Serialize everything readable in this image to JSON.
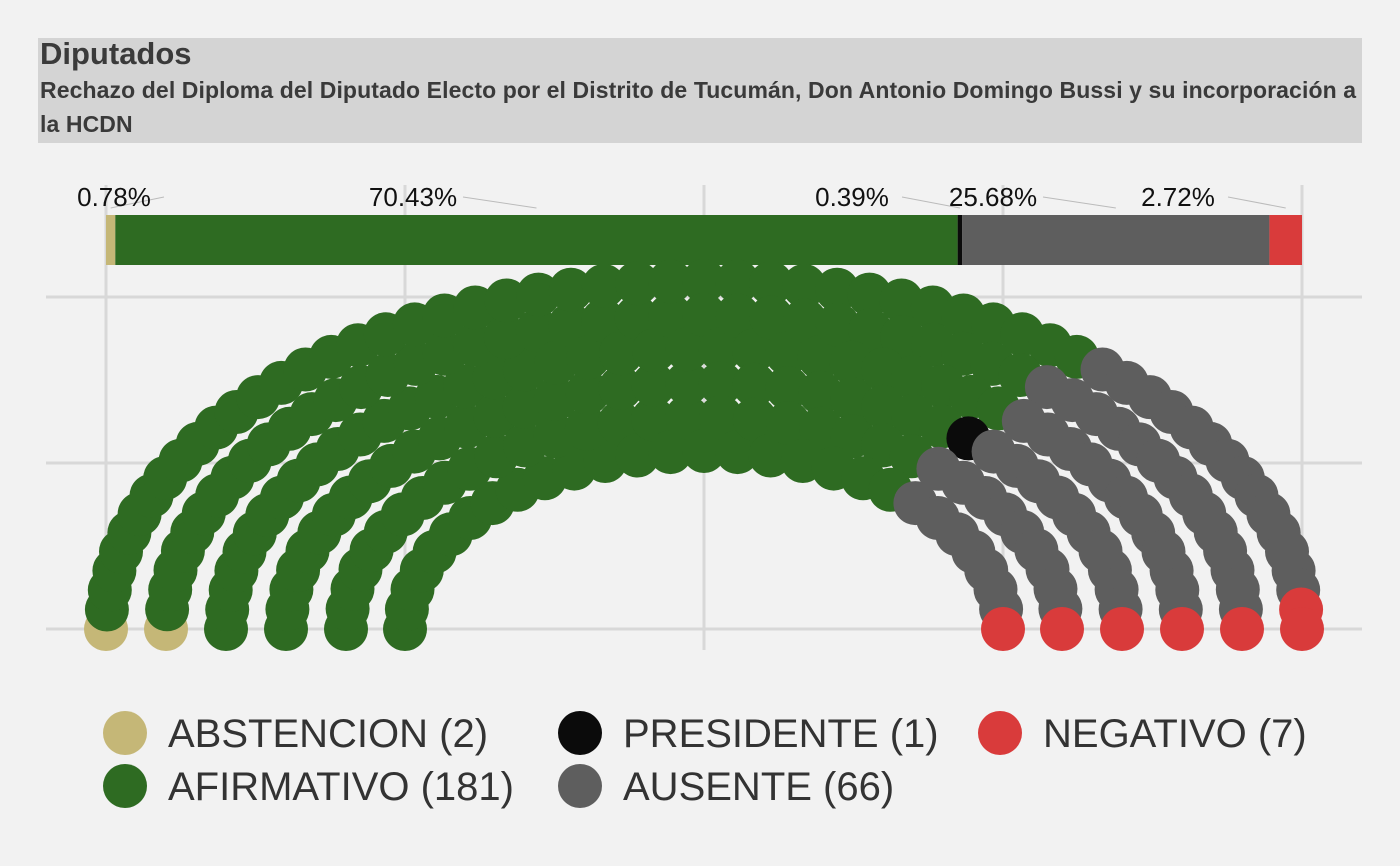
{
  "header": {
    "title": "Diputados",
    "subtitle": "Rechazo del Diploma del Diputado Electo por el Distrito de Tucumán, Don Antonio Domingo Bussi y su incorporación a la HCDN"
  },
  "chart_data": {
    "type": "parliament",
    "total_seats": 257,
    "grid": true,
    "legend_position": "bottom",
    "categories": [
      {
        "key": "ABSTENCION",
        "label": "ABSTENCION (2)",
        "count": 2,
        "percent_label": "0.78%",
        "color": "#c5b777"
      },
      {
        "key": "AFIRMATIVO",
        "label": "AFIRMATIVO (181)",
        "count": 181,
        "percent_label": "70.43%",
        "color": "#2e6b22"
      },
      {
        "key": "PRESIDENTE",
        "label": "PRESIDENTE (1)",
        "count": 1,
        "percent_label": "0.39%",
        "color": "#0b0b0b"
      },
      {
        "key": "AUSENTE",
        "label": "AUSENTE (66)",
        "count": 66,
        "percent_label": "25.68%",
        "color": "#5e5e5e"
      },
      {
        "key": "NEGATIVO",
        "label": "NEGATIVO (7)",
        "count": 7,
        "percent_label": "2.72%",
        "color": "#d93b3b"
      }
    ],
    "legend_order": [
      "ABSTENCION",
      "PRESIDENTE",
      "NEGATIVO",
      "AFIRMATIVO",
      "AUSENTE"
    ]
  }
}
